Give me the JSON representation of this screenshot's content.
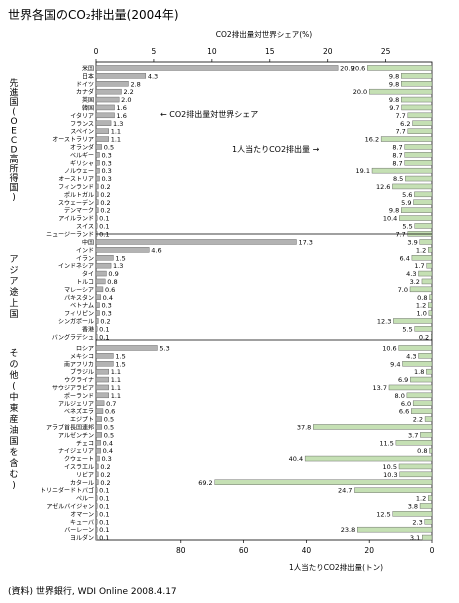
{
  "title": "世界各国のCO₂排出量(2004年)",
  "source": "(資料) 世界銀行, WDI Online 2008.4.17",
  "chart_data": {
    "type": "bar",
    "top_axis_label": "CO2排出量対世界シェア(%)",
    "bottom_axis_label": "1人当たりCO2排出量(トン)",
    "share_ticks": [
      "0",
      "5",
      "10",
      "15",
      "20",
      "25"
    ],
    "percap_ticks": [
      "80",
      "60",
      "40",
      "20",
      "0"
    ],
    "share_range": [
      0,
      29
    ],
    "percap_range": [
      0,
      107
    ],
    "share_series_label": "← CO2排出量対世界シェア",
    "percap_series_label": "1人当たりCO2排出量 →",
    "colors": {
      "share_bar": "#b3b3b3",
      "percap_bar": "#c5e0b4"
    },
    "groups": [
      {
        "label": "先進国(OECD高所得国)",
        "countries": [
          {
            "name": "米国",
            "share": 20.9,
            "share_label": "20.9",
            "percap": 20.6,
            "percap_label": "20.6"
          },
          {
            "name": "日本",
            "share": 4.3,
            "share_label": "4.3",
            "percap": 9.8,
            "percap_label": "9.8"
          },
          {
            "name": "ドイツ",
            "share": 2.8,
            "share_label": "2.8",
            "percap": 9.8,
            "percap_label": "9.8"
          },
          {
            "name": "カナダ",
            "share": 2.2,
            "share_label": "2.2",
            "percap": 20.0,
            "percap_label": "20.0"
          },
          {
            "name": "英国",
            "share": 2.0,
            "share_label": "2.0",
            "percap": 9.8,
            "percap_label": "9.8"
          },
          {
            "name": "韓国",
            "share": 1.6,
            "share_label": "1.6",
            "percap": 9.7,
            "percap_label": "9.7"
          },
          {
            "name": "イタリア",
            "share": 1.6,
            "share_label": "1.6",
            "percap": 7.7,
            "percap_label": "7.7"
          },
          {
            "name": "フランス",
            "share": 1.3,
            "share_label": "1.3",
            "percap": 6.2,
            "percap_label": "6.2"
          },
          {
            "name": "スペイン",
            "share": 1.1,
            "share_label": "1.1",
            "percap": 7.7,
            "percap_label": "7.7"
          },
          {
            "name": "オーストラリア",
            "share": 1.1,
            "share_label": "1.1",
            "percap": 16.2,
            "percap_label": "16.2"
          },
          {
            "name": "オランダ",
            "share": 0.5,
            "share_label": "0.5",
            "percap": 8.7,
            "percap_label": "8.7"
          },
          {
            "name": "ベルギー",
            "share": 0.3,
            "share_label": "0.3",
            "percap": 8.7,
            "percap_label": "8.7"
          },
          {
            "name": "ギリシャ",
            "share": 0.3,
            "share_label": "0.3",
            "percap": 8.7,
            "percap_label": "8.7"
          },
          {
            "name": "ノルウェー",
            "share": 0.3,
            "share_label": "0.3",
            "percap": 19.1,
            "percap_label": "19.1"
          },
          {
            "name": "オーストリア",
            "share": 0.3,
            "share_label": "0.3",
            "percap": 8.5,
            "percap_label": "8.5"
          },
          {
            "name": "フィンランド",
            "share": 0.2,
            "share_label": "0.2",
            "percap": 12.6,
            "percap_label": "12.6"
          },
          {
            "name": "ポルトガル",
            "share": 0.2,
            "share_label": "0.2",
            "percap": 5.6,
            "percap_label": "5.6"
          },
          {
            "name": "スウェーデン",
            "share": 0.2,
            "share_label": "0.2",
            "percap": 5.9,
            "percap_label": "5.9"
          },
          {
            "name": "デンマーク",
            "share": 0.2,
            "share_label": "0.2",
            "percap": 9.8,
            "percap_label": "9.8"
          },
          {
            "name": "アイルランド",
            "share": 0.1,
            "share_label": "0.1",
            "percap": 10.4,
            "percap_label": "10.4"
          },
          {
            "name": "スイス",
            "share": 0.1,
            "share_label": "0.1",
            "percap": 5.5,
            "percap_label": "5.5"
          },
          {
            "name": "ニュージーランド",
            "share": 0.1,
            "share_label": "0.1",
            "percap": 7.7,
            "percap_label": "7.7"
          }
        ]
      },
      {
        "label": "アジア途上国",
        "countries": [
          {
            "name": "中国",
            "share": 17.3,
            "share_label": "17.3",
            "percap": 3.9,
            "percap_label": "3.9"
          },
          {
            "name": "インド",
            "share": 4.6,
            "share_label": "4.6",
            "percap": 1.2,
            "percap_label": "1.2"
          },
          {
            "name": "イラン",
            "share": 1.5,
            "share_label": "1.5",
            "percap": 6.4,
            "percap_label": "6.4"
          },
          {
            "name": "インドネシア",
            "share": 1.3,
            "share_label": "1.3",
            "percap": 1.7,
            "percap_label": "1.7"
          },
          {
            "name": "タイ",
            "share": 0.9,
            "share_label": "0.9",
            "percap": 4.3,
            "percap_label": "4.3"
          },
          {
            "name": "トルコ",
            "share": 0.8,
            "share_label": "0.8",
            "percap": 3.2,
            "percap_label": "3.2"
          },
          {
            "name": "マレーシア",
            "share": 0.6,
            "share_label": "0.6",
            "percap": 7.0,
            "percap_label": "7.0"
          },
          {
            "name": "パキスタン",
            "share": 0.4,
            "share_label": "0.4",
            "percap": 0.8,
            "percap_label": "0.8"
          },
          {
            "name": "ベトナム",
            "share": 0.3,
            "share_label": "0.3",
            "percap": 1.2,
            "percap_label": "1.2"
          },
          {
            "name": "フィリピン",
            "share": 0.3,
            "share_label": "0.3",
            "percap": 1.0,
            "percap_label": "1.0"
          },
          {
            "name": "シンガポール",
            "share": 0.2,
            "share_label": "0.2",
            "percap": 12.3,
            "percap_label": "12.3"
          },
          {
            "name": "香港",
            "share": 0.1,
            "share_label": "0.1",
            "percap": 5.5,
            "percap_label": "5.5"
          },
          {
            "name": "バングラデシュ",
            "share": 0.1,
            "share_label": "0.1",
            "percap": 0.2,
            "percap_label": "0.2"
          }
        ]
      },
      {
        "label": "その他(中東産油国を含む)",
        "countries": [
          {
            "name": "ロシア",
            "share": 5.3,
            "share_label": "5.3",
            "percap": 10.6,
            "percap_label": "10.6"
          },
          {
            "name": "メキシコ",
            "share": 1.5,
            "share_label": "1.5",
            "percap": 4.3,
            "percap_label": "4.3"
          },
          {
            "name": "南アフリカ",
            "share": 1.5,
            "share_label": "1.5",
            "percap": 9.4,
            "percap_label": "9.4"
          },
          {
            "name": "ブラジル",
            "share": 1.1,
            "share_label": "1.1",
            "percap": 1.8,
            "percap_label": "1.8"
          },
          {
            "name": "ウクライナ",
            "share": 1.1,
            "share_label": "1.1",
            "percap": 6.9,
            "percap_label": "6.9"
          },
          {
            "name": "サウジアラビア",
            "share": 1.1,
            "share_label": "1.1",
            "percap": 13.7,
            "percap_label": "13.7"
          },
          {
            "name": "ポーランド",
            "share": 1.1,
            "share_label": "1.1",
            "percap": 8.0,
            "percap_label": "8.0"
          },
          {
            "name": "アルジェリア",
            "share": 0.7,
            "share_label": "0.7",
            "percap": 6.0,
            "percap_label": "6.0"
          },
          {
            "name": "ベネズエラ",
            "share": 0.6,
            "share_label": "0.6",
            "percap": 6.6,
            "percap_label": "6.6"
          },
          {
            "name": "エジプト",
            "share": 0.5,
            "share_label": "0.5",
            "percap": 2.2,
            "percap_label": "2.2"
          },
          {
            "name": "アラブ首長国連邦",
            "share": 0.5,
            "share_label": "0.5",
            "percap": 37.8,
            "percap_label": "37.8"
          },
          {
            "name": "アルゼンチン",
            "share": 0.5,
            "share_label": "0.5",
            "percap": 3.7,
            "percap_label": "3.7"
          },
          {
            "name": "チェコ",
            "share": 0.4,
            "share_label": "0.4",
            "percap": 11.5,
            "percap_label": "11.5"
          },
          {
            "name": "ナイジェリア",
            "share": 0.4,
            "share_label": "0.4",
            "percap": 0.8,
            "percap_label": "0.8"
          },
          {
            "name": "クウェート",
            "share": 0.3,
            "share_label": "0.3",
            "percap": 40.4,
            "percap_label": "40.4"
          },
          {
            "name": "イスラエル",
            "share": 0.2,
            "share_label": "0.2",
            "percap": 10.5,
            "percap_label": "10.5"
          },
          {
            "name": "リビア",
            "share": 0.2,
            "share_label": "0.2",
            "percap": 10.3,
            "percap_label": "10.3"
          },
          {
            "name": "カタール",
            "share": 0.2,
            "share_label": "0.2",
            "percap": 69.2,
            "percap_label": "69.2"
          },
          {
            "name": "トリニダードトバゴ",
            "share": 0.1,
            "share_label": "0.1",
            "percap": 24.7,
            "percap_label": "24.7"
          },
          {
            "name": "ペルー",
            "share": 0.1,
            "share_label": "0.1",
            "percap": 1.2,
            "percap_label": "1.2"
          },
          {
            "name": "アゼルバイジャン",
            "share": 0.1,
            "share_label": "0.1",
            "percap": 3.8,
            "percap_label": "3.8"
          },
          {
            "name": "オマーン",
            "share": 0.1,
            "share_label": "0.1",
            "percap": 12.5,
            "percap_label": "12.5"
          },
          {
            "name": "キューバ",
            "share": 0.1,
            "share_label": "0.1",
            "percap": 2.3,
            "percap_label": "2.3"
          },
          {
            "name": "バーレーン",
            "share": 0.1,
            "share_label": "0.1",
            "percap": 23.8,
            "percap_label": "23.8"
          },
          {
            "name": "ヨルダン",
            "share": 0.1,
            "share_label": "0.1",
            "percap": 3.1,
            "percap_label": "3.1"
          }
        ]
      }
    ]
  }
}
